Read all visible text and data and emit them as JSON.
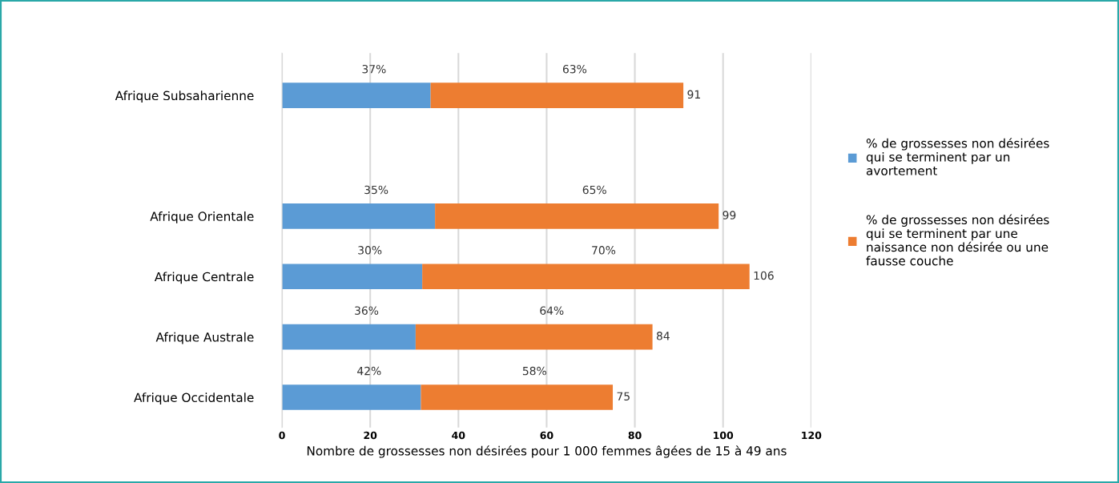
{
  "chart_data": {
    "type": "bar",
    "orientation": "horizontal",
    "stacked": true,
    "xlabel": "Nombre de grossesses non désirées pour 1 000 femmes âgées de 15 à 49 ans",
    "categories": [
      "Afrique Subsaharienne",
      null,
      "Afrique Orientale",
      "Afrique Centrale",
      "Afrique Australe",
      "Afrique Occidentale"
    ],
    "series": [
      {
        "name": "% de grossesses non désirées qui se terminent par un avortement",
        "color": "#5b9bd5",
        "values": [
          33.7,
          null,
          34.7,
          31.8,
          30.3,
          31.5
        ]
      },
      {
        "name": "% de grossesses non désirées qui se terminent par une naissance non désirée ou une fausse couche",
        "color": "#ed7d31",
        "values": [
          57.3,
          null,
          64.3,
          74.2,
          53.7,
          43.5
        ]
      }
    ],
    "annotations": [
      "37%",
      "63%",
      "35%",
      "65%",
      "30%",
      "70%",
      "36%",
      "64%",
      "42%",
      "58%"
    ],
    "totals": [
      "91",
      null,
      "99",
      "106",
      "84",
      "75"
    ],
    "xlim": [
      0,
      120
    ],
    "xticks": [
      0,
      20,
      40,
      60,
      80,
      100,
      120
    ],
    "grid": "x",
    "legend": "right"
  }
}
